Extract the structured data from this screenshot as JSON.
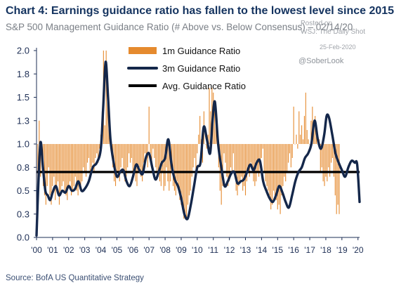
{
  "title": "Chart 4: Earnings guidance ratio has fallen to the lowest level since 2015",
  "subtitle": "S&P 500 Management Guidance Ratio (# Above vs. Below Consensus) – 02/14/20",
  "source": "Source: BofA US Quantitative Strategy",
  "watermark": {
    "posted": "Posted on",
    "outlet": "WSJ: The Daily Shot",
    "date": "25-Feb-2020",
    "handle": "@SoberLook"
  },
  "colors": {
    "title": "#14335f",
    "bars": "#e58a2e",
    "line_3m": "#14274a",
    "avg_line": "#000000",
    "text": "#1e2f55"
  },
  "chart_data": {
    "type": "bar",
    "title": "Chart 4: Earnings guidance ratio has fallen to the lowest level since 2015",
    "subtitle": "S&P 500 Management Guidance Ratio (# Above vs. Below Consensus) – 02/14/20",
    "xlabel": "",
    "ylabel": "",
    "ylim": [
      0,
      2.0
    ],
    "y_ticks": [
      "0.0",
      "0.3",
      "0.5",
      "0.8",
      "1.0",
      "1.3",
      "1.5",
      "1.8",
      "2.0"
    ],
    "x_ticks": [
      "'00",
      "'01",
      "'02",
      "'03",
      "'04",
      "'05",
      "'06",
      "'07",
      "'08",
      "'09",
      "'10",
      "'11",
      "'12",
      "'13",
      "'14",
      "'15",
      "'16",
      "'17",
      "'18",
      "'19",
      "'20"
    ],
    "x_range": [
      2000.0,
      2020.1
    ],
    "bar_baseline": 1.0,
    "grid": false,
    "legend_position": "top-right",
    "series": [
      {
        "name": "1m Guidance Ratio",
        "type": "bar",
        "x_start": 2000.0,
        "x_step": 0.08333,
        "values": [
          0.05,
          0.45,
          1.25,
          0.65,
          0.85,
          0.55,
          0.45,
          0.35,
          0.55,
          0.75,
          0.45,
          0.35,
          0.55,
          0.65,
          0.4,
          0.5,
          0.6,
          0.35,
          0.45,
          0.55,
          0.6,
          0.5,
          0.45,
          0.4,
          0.55,
          0.6,
          0.45,
          0.5,
          0.55,
          0.65,
          0.5,
          0.45,
          0.55,
          0.5,
          0.6,
          0.75,
          0.7,
          0.65,
          0.8,
          0.85,
          0.7,
          0.75,
          0.8,
          0.7,
          0.85,
          0.9,
          0.8,
          0.95,
          1.1,
          1.35,
          2.0,
          1.2,
          2.0,
          1.6,
          1.4,
          1.1,
          0.9,
          0.75,
          0.6,
          0.55,
          0.7,
          0.65,
          0.6,
          0.75,
          0.85,
          0.7,
          0.6,
          0.65,
          0.75,
          0.9,
          0.8,
          0.85,
          0.7,
          0.75,
          0.6,
          0.55,
          0.7,
          0.75,
          0.65,
          0.6,
          0.8,
          0.9,
          0.85,
          0.75,
          1.4,
          0.9,
          0.8,
          0.95,
          0.85,
          0.75,
          0.7,
          0.65,
          0.6,
          0.55,
          0.7,
          0.5,
          0.55,
          0.75,
          0.6,
          0.5,
          0.6,
          0.8,
          0.55,
          0.5,
          0.45,
          0.6,
          0.55,
          0.4,
          0.35,
          0.3,
          0.2,
          0.25,
          0.2,
          0.35,
          0.45,
          0.5,
          0.65,
          0.75,
          0.85,
          0.7,
          0.9,
          1.1,
          1.3,
          1.05,
          0.8,
          1.35,
          1.0,
          0.95,
          1.1,
          1.6,
          1.35,
          1.6,
          1.55,
          1.4,
          1.2,
          1.0,
          0.75,
          0.5,
          0.35,
          0.55,
          0.9,
          0.8,
          0.65,
          0.55,
          0.6,
          0.75,
          0.7,
          0.9,
          0.65,
          0.5,
          0.45,
          0.55,
          0.6,
          0.65,
          0.5,
          0.55,
          0.45,
          0.6,
          0.7,
          0.65,
          0.8,
          0.75,
          0.6,
          0.55,
          0.6,
          0.7,
          0.65,
          0.75,
          0.85,
          0.95,
          0.7,
          0.6,
          0.55,
          0.5,
          0.45,
          0.3,
          0.35,
          0.5,
          0.45,
          0.4,
          0.3,
          0.35,
          0.25,
          0.45,
          0.55,
          0.65,
          0.6,
          0.7,
          0.8,
          0.9,
          0.75,
          0.85,
          1.4,
          1.0,
          1.1,
          0.95,
          1.35,
          1.1,
          1.2,
          1.05,
          1.3,
          1.55,
          1.15,
          1.05,
          1.0,
          1.25,
          1.4,
          1.2,
          1.3,
          1.15,
          1.0,
          1.05,
          0.7,
          0.75,
          0.6,
          0.55,
          0.65,
          0.6,
          0.75,
          0.65,
          0.8,
          0.85,
          0.65,
          0.45,
          0.25,
          0.35,
          0.25
        ]
      },
      {
        "name": "3m Guidance Ratio",
        "type": "line",
        "x": [
          2000.0,
          2000.12,
          2000.25,
          2000.4,
          2000.55,
          2000.7,
          2000.85,
          2001.0,
          2001.2,
          2001.4,
          2001.6,
          2001.8,
          2002.0,
          2002.2,
          2002.4,
          2002.6,
          2002.8,
          2003.0,
          2003.25,
          2003.5,
          2003.75,
          2004.0,
          2004.15,
          2004.3,
          2004.45,
          2004.6,
          2004.8,
          2005.0,
          2005.2,
          2005.4,
          2005.6,
          2005.8,
          2006.0,
          2006.2,
          2006.4,
          2006.6,
          2006.8,
          2007.0,
          2007.2,
          2007.4,
          2007.6,
          2007.8,
          2008.0,
          2008.2,
          2008.4,
          2008.6,
          2008.8,
          2009.0,
          2009.2,
          2009.4,
          2009.6,
          2009.8,
          2010.0,
          2010.2,
          2010.4,
          2010.6,
          2010.8,
          2010.95,
          2011.1,
          2011.3,
          2011.5,
          2011.7,
          2011.9,
          2012.1,
          2012.3,
          2012.5,
          2012.7,
          2012.9,
          2013.1,
          2013.3,
          2013.5,
          2013.7,
          2013.9,
          2014.1,
          2014.3,
          2014.5,
          2014.7,
          2014.9,
          2015.1,
          2015.3,
          2015.5,
          2015.7,
          2015.9,
          2016.1,
          2016.3,
          2016.5,
          2016.7,
          2016.9,
          2017.1,
          2017.3,
          2017.5,
          2017.7,
          2017.9,
          2018.05,
          2018.2,
          2018.4,
          2018.6,
          2018.8,
          2019.0,
          2019.2,
          2019.4,
          2019.6,
          2019.8,
          2019.95,
          2020.1
        ],
        "values": [
          0.02,
          0.6,
          1.02,
          0.75,
          0.5,
          0.45,
          0.4,
          0.48,
          0.55,
          0.45,
          0.5,
          0.48,
          0.55,
          0.5,
          0.52,
          0.6,
          0.5,
          0.52,
          0.6,
          0.75,
          0.8,
          0.95,
          1.4,
          1.88,
          1.5,
          1.05,
          0.8,
          0.65,
          0.7,
          0.72,
          0.6,
          0.55,
          0.65,
          0.78,
          0.72,
          0.68,
          0.85,
          0.9,
          0.75,
          0.62,
          0.7,
          0.8,
          0.85,
          1.05,
          0.78,
          0.62,
          0.55,
          0.42,
          0.25,
          0.2,
          0.35,
          0.55,
          0.75,
          0.8,
          1.18,
          1.05,
          0.9,
          1.25,
          1.45,
          1.0,
          0.75,
          0.55,
          0.6,
          0.68,
          0.7,
          0.58,
          0.6,
          0.62,
          0.7,
          0.78,
          0.72,
          0.8,
          0.82,
          0.6,
          0.5,
          0.42,
          0.38,
          0.45,
          0.55,
          0.48,
          0.38,
          0.32,
          0.45,
          0.6,
          0.7,
          0.75,
          0.85,
          0.9,
          1.0,
          1.25,
          1.05,
          0.95,
          1.1,
          1.3,
          1.28,
          1.1,
          0.9,
          0.8,
          0.72,
          0.65,
          0.75,
          0.82,
          0.8,
          0.78,
          0.38
        ]
      },
      {
        "name": "Avg. Guidance Ratio",
        "type": "hline",
        "value": 0.7
      }
    ]
  }
}
